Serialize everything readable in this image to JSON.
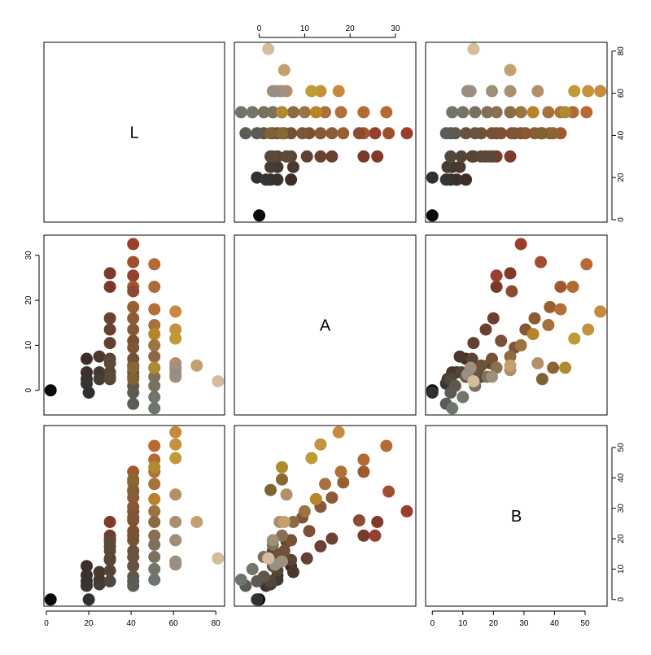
{
  "chart_data": {
    "type": "scatter",
    "subtype": "pairs-matrix",
    "variables": [
      "L",
      "A",
      "B"
    ],
    "ranges": {
      "L": [
        2,
        81
      ],
      "A": [
        -4,
        33
      ],
      "B": [
        0,
        55
      ]
    },
    "ticks": {
      "L": [
        0,
        20,
        40,
        60,
        80
      ],
      "A": [
        0,
        10,
        20,
        30
      ],
      "B": [
        0,
        10,
        20,
        30,
        40,
        50
      ]
    },
    "tick_labels": {
      "L": [
        "0",
        "20",
        "40",
        "60",
        "80"
      ],
      "A": [
        "0",
        "10",
        "20",
        "30"
      ],
      "B": [
        "0",
        "10",
        "20",
        "30",
        "40",
        "50"
      ]
    },
    "grid": false,
    "legend": "none",
    "points": [
      {
        "L": 2,
        "A": 0,
        "B": 0,
        "color": "#0a0a0a"
      },
      {
        "L": 20,
        "A": -0.5,
        "B": 0,
        "color": "#303030"
      },
      {
        "L": 19,
        "A": 7,
        "B": 11,
        "color": "#3c2d26"
      },
      {
        "L": 19,
        "A": 4,
        "B": 8,
        "color": "#3c302a"
      },
      {
        "L": 19,
        "A": 2.5,
        "B": 6,
        "color": "#353230"
      },
      {
        "L": 19,
        "A": 1.5,
        "B": 4.5,
        "color": "#383432"
      },
      {
        "L": 25,
        "A": 7.5,
        "B": 9,
        "color": "#4a3830"
      },
      {
        "L": 25,
        "A": 4,
        "B": 6.5,
        "color": "#453830"
      },
      {
        "L": 25,
        "A": 2.5,
        "B": 5,
        "color": "#443c36"
      },
      {
        "L": 30,
        "A": 26,
        "B": 25.5,
        "color": "#803a2a"
      },
      {
        "L": 30,
        "A": 23,
        "B": 21,
        "color": "#7a3a2a"
      },
      {
        "L": 30,
        "A": 16,
        "B": 20,
        "color": "#6e4030"
      },
      {
        "L": 30,
        "A": 13.5,
        "B": 17.5,
        "color": "#6a4030"
      },
      {
        "L": 30,
        "A": 10.5,
        "B": 13.5,
        "color": "#634034"
      },
      {
        "L": 30,
        "A": 7,
        "B": 13,
        "color": "#5a4434"
      },
      {
        "L": 30,
        "A": 4,
        "B": 9.5,
        "color": "#554535"
      },
      {
        "L": 30,
        "A": 2.5,
        "B": 6,
        "color": "#50473d"
      },
      {
        "L": 30,
        "A": 6,
        "B": 19,
        "color": "#5c4a36"
      },
      {
        "L": 30,
        "A": 3,
        "B": 16,
        "color": "#574a38"
      },
      {
        "L": 41,
        "A": 32.5,
        "B": 29,
        "color": "#9c3c2a"
      },
      {
        "L": 41,
        "A": 28.5,
        "B": 35.5,
        "color": "#a0502e"
      },
      {
        "L": 41,
        "A": 25.5,
        "B": 21,
        "color": "#94402e"
      },
      {
        "L": 41,
        "A": 23,
        "B": 42,
        "color": "#a0582e"
      },
      {
        "L": 41,
        "A": 22,
        "B": 26,
        "color": "#8e4a30"
      },
      {
        "L": 41,
        "A": 18.5,
        "B": 38.5,
        "color": "#986030"
      },
      {
        "L": 41,
        "A": 16,
        "B": 33.5,
        "color": "#8c5a34"
      },
      {
        "L": 41,
        "A": 13.5,
        "B": 30.5,
        "color": "#865834"
      },
      {
        "L": 41,
        "A": 11,
        "B": 22.5,
        "color": "#7c5034"
      },
      {
        "L": 41,
        "A": 9.5,
        "B": 27,
        "color": "#7c5636"
      },
      {
        "L": 41,
        "A": 7,
        "B": 19.5,
        "color": "#745236"
      },
      {
        "L": 41,
        "A": 5.5,
        "B": 16,
        "color": "#6e5238"
      },
      {
        "L": 41,
        "A": 4,
        "B": 14,
        "color": "#6a5240"
      },
      {
        "L": 41,
        "A": 3,
        "B": 11,
        "color": "#645242"
      },
      {
        "L": 41,
        "A": 1,
        "B": 7.5,
        "color": "#60564a"
      },
      {
        "L": 41,
        "A": -0.5,
        "B": 6,
        "color": "#5c5a52"
      },
      {
        "L": 41,
        "A": -3,
        "B": 4.5,
        "color": "#5a5c56"
      },
      {
        "L": 41,
        "A": 5,
        "B": 39.5,
        "color": "#8a6630"
      },
      {
        "L": 41,
        "A": 2.5,
        "B": 36,
        "color": "#7e6234"
      },
      {
        "L": 51,
        "A": 28,
        "B": 50.5,
        "color": "#b86a34"
      },
      {
        "L": 51,
        "A": 23,
        "B": 46,
        "color": "#b06a34"
      },
      {
        "L": 51,
        "A": 18,
        "B": 42,
        "color": "#b07038"
      },
      {
        "L": 51,
        "A": 14.5,
        "B": 38,
        "color": "#a8703a"
      },
      {
        "L": 51,
        "A": 12.5,
        "B": 33,
        "color": "#b88428"
      },
      {
        "L": 51,
        "A": 10,
        "B": 29,
        "color": "#9c7440"
      },
      {
        "L": 51,
        "A": 7.5,
        "B": 25.5,
        "color": "#8c6a44"
      },
      {
        "L": 51,
        "A": 5,
        "B": 21,
        "color": "#8a7050"
      },
      {
        "L": 51,
        "A": 3,
        "B": 18,
        "color": "#80705a"
      },
      {
        "L": 51,
        "A": 1,
        "B": 14,
        "color": "#7a7060"
      },
      {
        "L": 51,
        "A": -1.5,
        "B": 10,
        "color": "#747468"
      },
      {
        "L": 51,
        "A": -4,
        "B": 6.5,
        "color": "#6e746e"
      },
      {
        "L": 51,
        "A": 5,
        "B": 43.5,
        "color": "#ae8a30"
      },
      {
        "L": 61,
        "A": 17.5,
        "B": 55,
        "color": "#c88a3c"
      },
      {
        "L": 61,
        "A": 13.5,
        "B": 51,
        "color": "#c4923c"
      },
      {
        "L": 61,
        "A": 11.5,
        "B": 46.5,
        "color": "#c09a34"
      },
      {
        "L": 61,
        "A": 6,
        "B": 34.5,
        "color": "#b4906a"
      },
      {
        "L": 61,
        "A": 4.5,
        "B": 25.5,
        "color": "#a8906e"
      },
      {
        "L": 61,
        "A": 3,
        "B": 19.5,
        "color": "#9c9078"
      },
      {
        "L": 61,
        "A": 5,
        "B": 12.5,
        "color": "#a09080"
      },
      {
        "L": 61,
        "A": 3.5,
        "B": 11.5,
        "color": "#9a8e84"
      },
      {
        "L": 71,
        "A": 5.5,
        "B": 25.5,
        "color": "#c4a070"
      },
      {
        "L": 81,
        "A": 2,
        "B": 13.5,
        "color": "#d4bc9c"
      }
    ]
  }
}
